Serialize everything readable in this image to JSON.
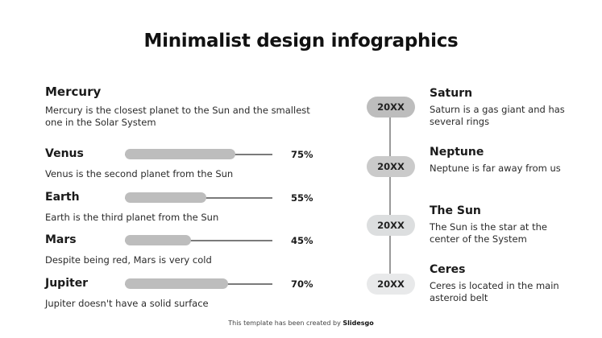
{
  "title": "Minimalist design infographics",
  "intro": {
    "name": "Mercury",
    "description": "Mercury is the closest planet to the Sun and the smallest one in the Solar System"
  },
  "bars": [
    {
      "name": "Venus",
      "percent": 75,
      "label": "75%",
      "description": "Venus is the second planet from the Sun"
    },
    {
      "name": "Earth",
      "percent": 55,
      "label": "55%",
      "description": "Earth is the third planet from the Sun"
    },
    {
      "name": "Mars",
      "percent": 45,
      "label": "45%",
      "description": "Despite being red, Mars is very cold"
    },
    {
      "name": "Jupiter",
      "percent": 70,
      "label": "70%",
      "description": "Jupiter doesn't have a solid surface"
    }
  ],
  "timeline": [
    {
      "year": "20XX",
      "color": "#bdbdbd",
      "name": "Saturn",
      "description": "Saturn is a gas giant and has several rings"
    },
    {
      "year": "20XX",
      "color": "#cacaca",
      "name": "Neptune",
      "description": "Neptune is far away from us"
    },
    {
      "year": "20XX",
      "color": "#dcdedf",
      "name": "The Sun",
      "description": "The Sun is the star at the center of the System"
    },
    {
      "year": "20XX",
      "color": "#e8e9ea",
      "name": "Ceres",
      "description": "Ceres is located in the main asteroid belt"
    }
  ],
  "footer": {
    "text": "This template has been created by ",
    "brand": "Slidesgo"
  },
  "colors": {
    "bar_fill": "#bdbdbd",
    "bar_track": "#7a7a7a",
    "text": "#1a1a1a"
  }
}
